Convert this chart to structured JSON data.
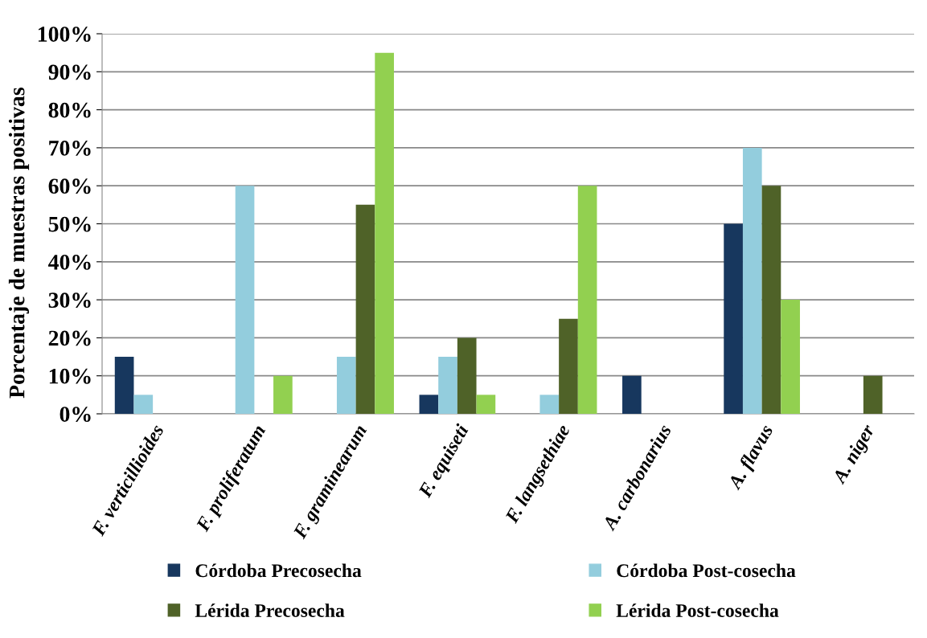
{
  "chart_data": {
    "type": "bar",
    "ylabel": "Porcentaje de muestras positivas",
    "categories": [
      "F. verticillioides",
      "F. proliferatum",
      "F. graminearum",
      "F. equiseti",
      "F. langsethiae",
      "A. carbonarius",
      "A. flavus",
      "A. niger"
    ],
    "series": [
      {
        "name": "Córdoba Precosecha",
        "color": "#17375e",
        "values": [
          15,
          0,
          0,
          5,
          0,
          10,
          50,
          0
        ]
      },
      {
        "name": "Córdoba Post-cosecha",
        "color": "#93cddd",
        "values": [
          5,
          60,
          15,
          15,
          5,
          0,
          70,
          0
        ]
      },
      {
        "name": "Lérida Precosecha",
        "color": "#4f6228",
        "values": [
          0,
          0,
          55,
          20,
          25,
          0,
          60,
          10
        ]
      },
      {
        "name": "Lérida Post-cosecha",
        "color": "#92d050",
        "values": [
          0,
          10,
          95,
          5,
          60,
          0,
          30,
          0
        ]
      }
    ],
    "ylim": [
      0,
      100
    ],
    "yticks": [
      {
        "value": 0,
        "label": "0%"
      },
      {
        "value": 10,
        "label": "10%"
      },
      {
        "value": 20,
        "label": "20%"
      },
      {
        "value": 30,
        "label": "30%"
      },
      {
        "value": 40,
        "label": "40%"
      },
      {
        "value": 50,
        "label": "50%"
      },
      {
        "value": 60,
        "label": "60%"
      },
      {
        "value": 70,
        "label": "70%"
      },
      {
        "value": 80,
        "label": "80%"
      },
      {
        "value": 90,
        "label": "90%"
      },
      {
        "value": 100,
        "label": "100%"
      }
    ],
    "grid": "y",
    "legend": "bottom"
  }
}
